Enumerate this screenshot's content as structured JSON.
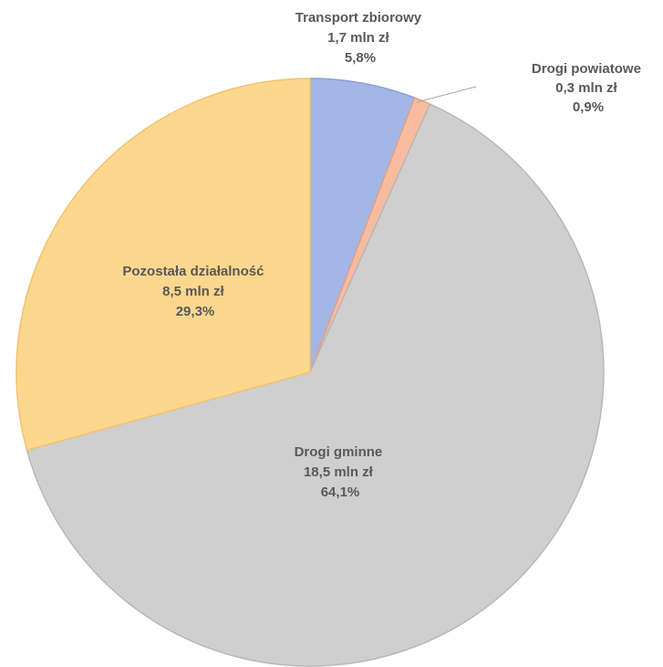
{
  "chart_data": {
    "type": "pie",
    "title": "",
    "unit": "mln zł",
    "slices": [
      {
        "label": "Transport zbiorowy",
        "value_text": "1,7 mln zł",
        "value": 1.7,
        "percent_text": "5,8%",
        "percent": 5.8,
        "color": "#a4b6e6",
        "edge": "#8ea0d2"
      },
      {
        "label": "Drogi powiatowe",
        "value_text": "0,3 mln zł",
        "value": 0.3,
        "percent_text": "0,9%",
        "percent": 0.9,
        "color": "#f7bca0",
        "edge": "#e6a080"
      },
      {
        "label": "Drogi gminne",
        "value_text": "18,5 mln zł",
        "value": 18.5,
        "percent_text": "64,1%",
        "percent": 64.1,
        "color": "#cfcfcf",
        "edge": "#b8b8b8"
      },
      {
        "label": "Pozostała działalność",
        "value_text": "8,5 mln zł",
        "value": 8.5,
        "percent_text": "29,3%",
        "percent": 29.3,
        "color": "#fdd78e",
        "edge": "#f0c470"
      }
    ]
  }
}
